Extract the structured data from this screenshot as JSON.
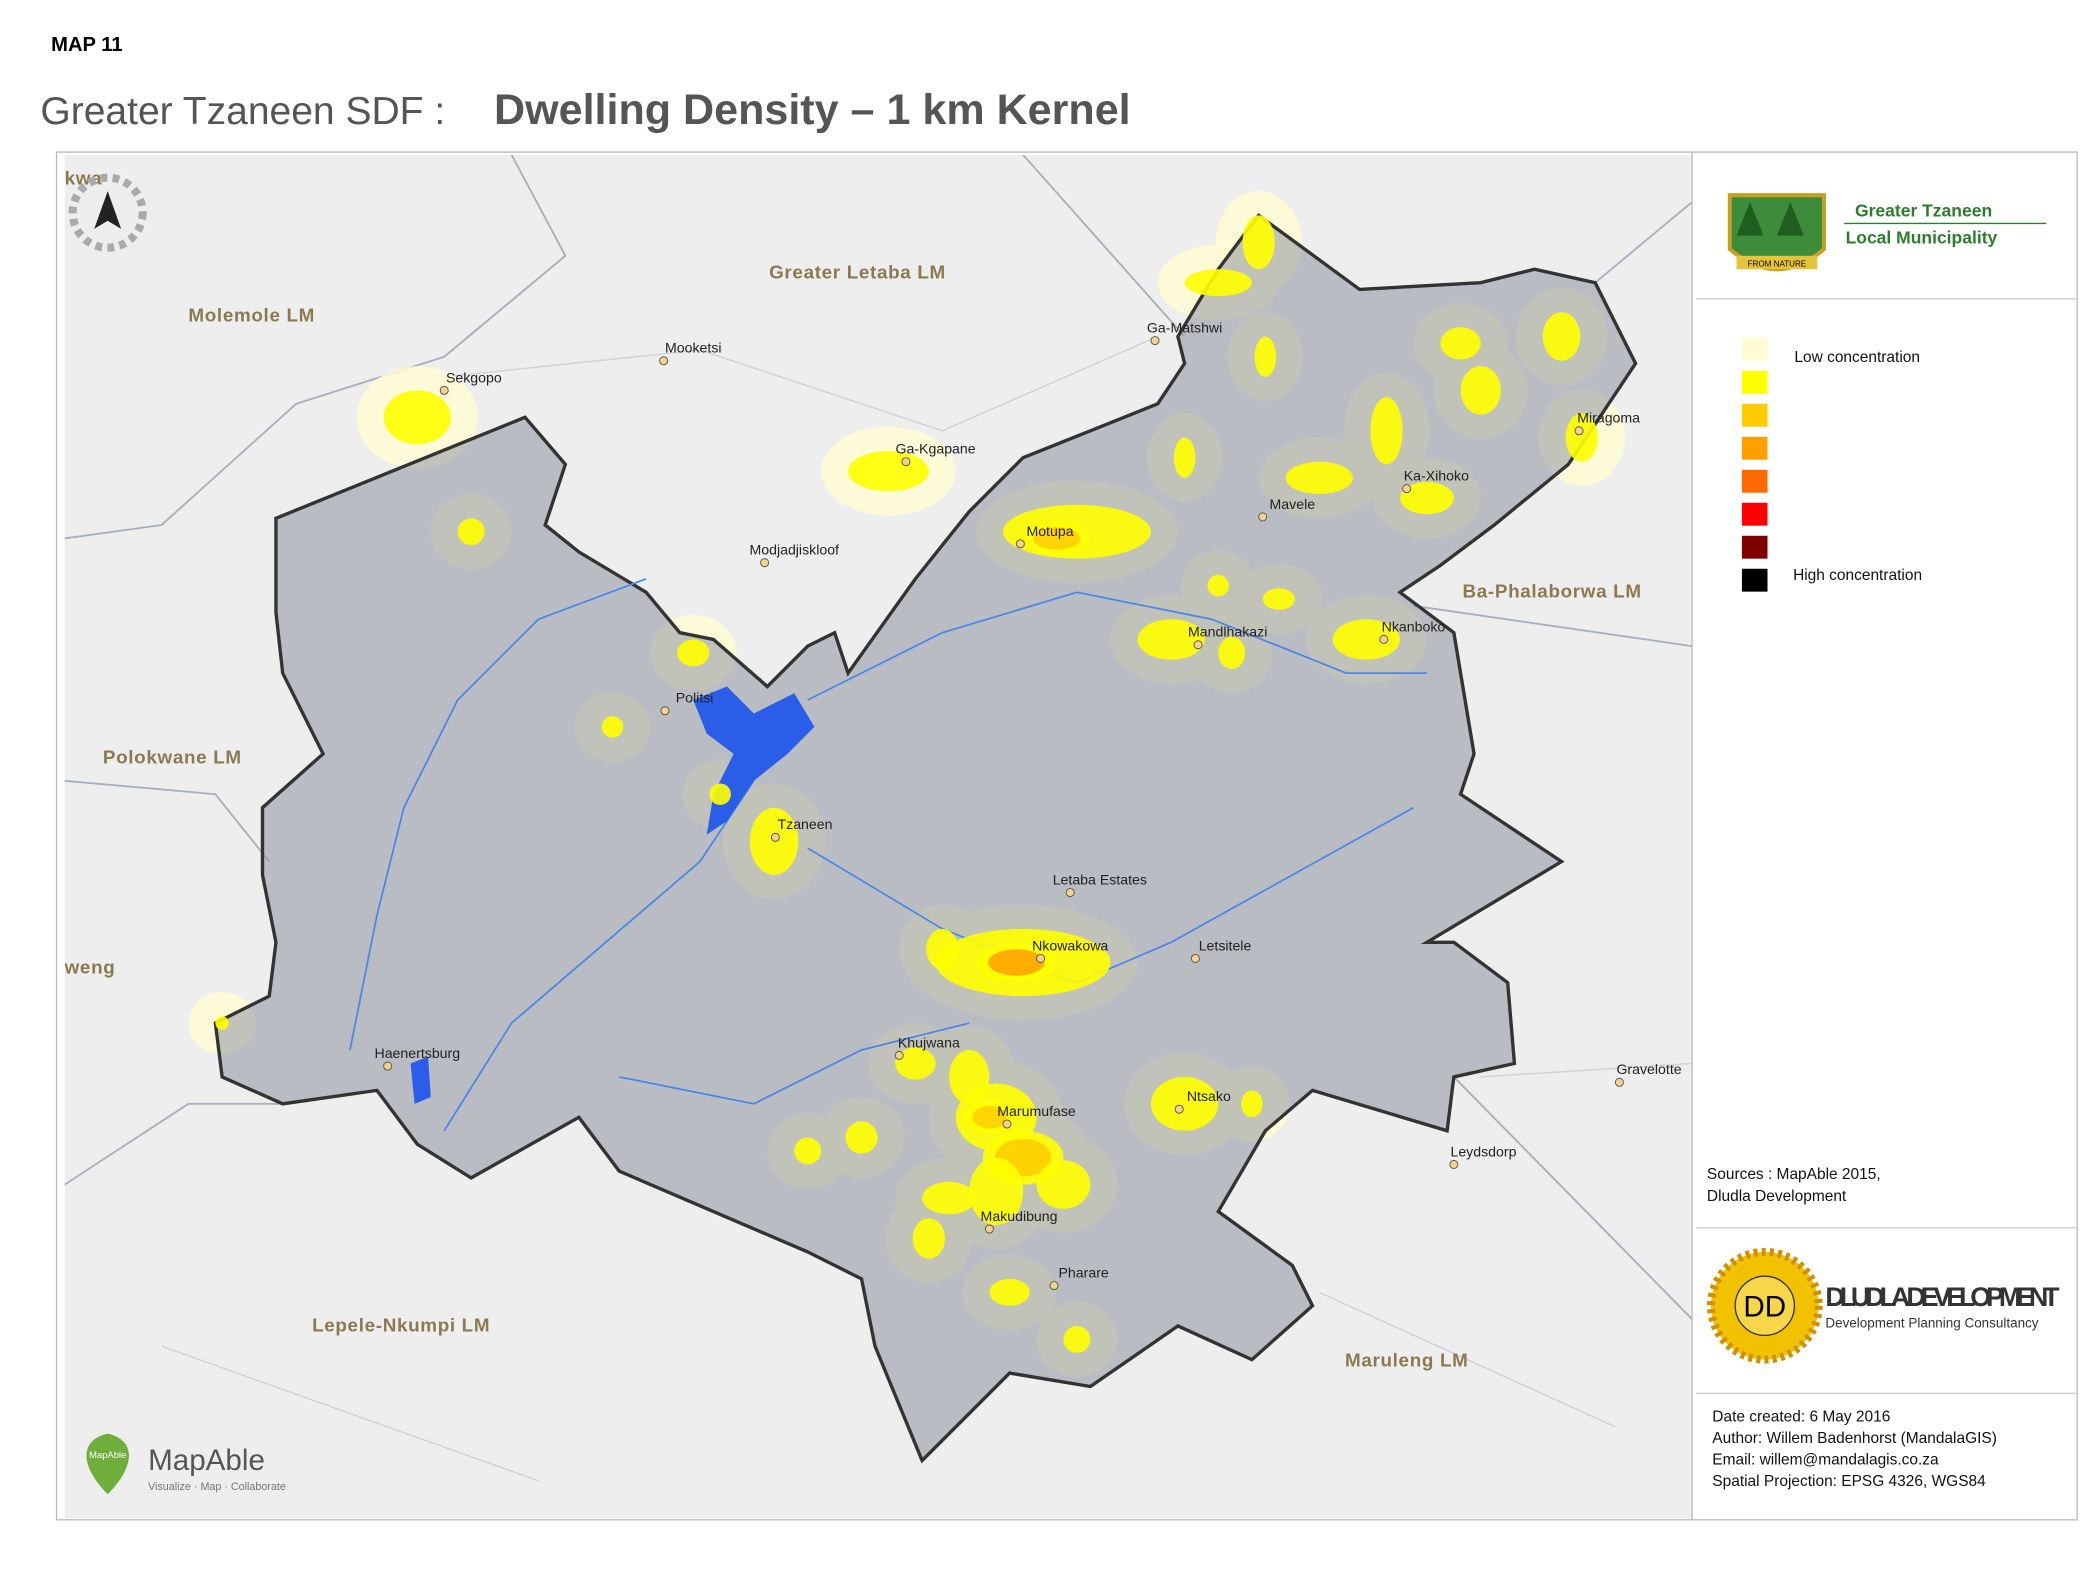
{
  "header": {
    "map_number": "MAP 11",
    "title_prefix": "Greater Tzaneen SDF :",
    "title": "Dwelling Density – 1 km Kernel"
  },
  "map": {
    "regions": [
      "Greater Letaba LM",
      "Molemole LM",
      "Ba-Phalaborwa LM",
      "Polokwane LM",
      "Lepele-Nkumpi LM",
      "Maruleng LM",
      "kwa",
      "weng"
    ],
    "towns": [
      "Ga-Matshwi",
      "Mooketsi",
      "Sekgopo",
      "Ga-Kgapane",
      "Modjadjiskloof",
      "Miragoma",
      "Ka-Xihoko",
      "Mavele",
      "Motupa",
      "Mandlhakazi",
      "Nkanboko",
      "Politsi",
      "Tzaneen",
      "Letaba Estates",
      "Nkowakowa",
      "Letsitele",
      "Khujwana",
      "Haenertsburg",
      "Marumufase",
      "Ntsako",
      "Gravelotte",
      "Leydsdorp",
      "Makudibung",
      "Pharare"
    ],
    "basemap_logo": {
      "name": "MapAble",
      "badge": "MapAble",
      "tagline": "Visualize · Map · Collaborate"
    }
  },
  "municipality_logo": {
    "line1": "Greater Tzaneen",
    "line2": "Local Municipality",
    "motto": "FROM NATURE"
  },
  "legend": {
    "colors": [
      "#fffbd2",
      "#ffff00",
      "#ffcc00",
      "#ff9f00",
      "#ff6a00",
      "#ff0000",
      "#800000",
      "#000000"
    ],
    "low_label": "Low concentration",
    "high_label": "High concentration"
  },
  "sources": [
    "Sources : MapAble 2015,",
    "Dludla Development"
  ],
  "consultant_logo": {
    "initials": "DD",
    "name": "DLUDLA DEVELOPMENT",
    "tagline": "Development Planning Consultancy"
  },
  "metadata": [
    "Date created:  6 May 2016",
    "Author: Willem Badenhorst (MandalaGIS)",
    "Email: willem@mandalagis.co.za",
    "Spatial Projection:  EPSG 4326, WGS84"
  ]
}
